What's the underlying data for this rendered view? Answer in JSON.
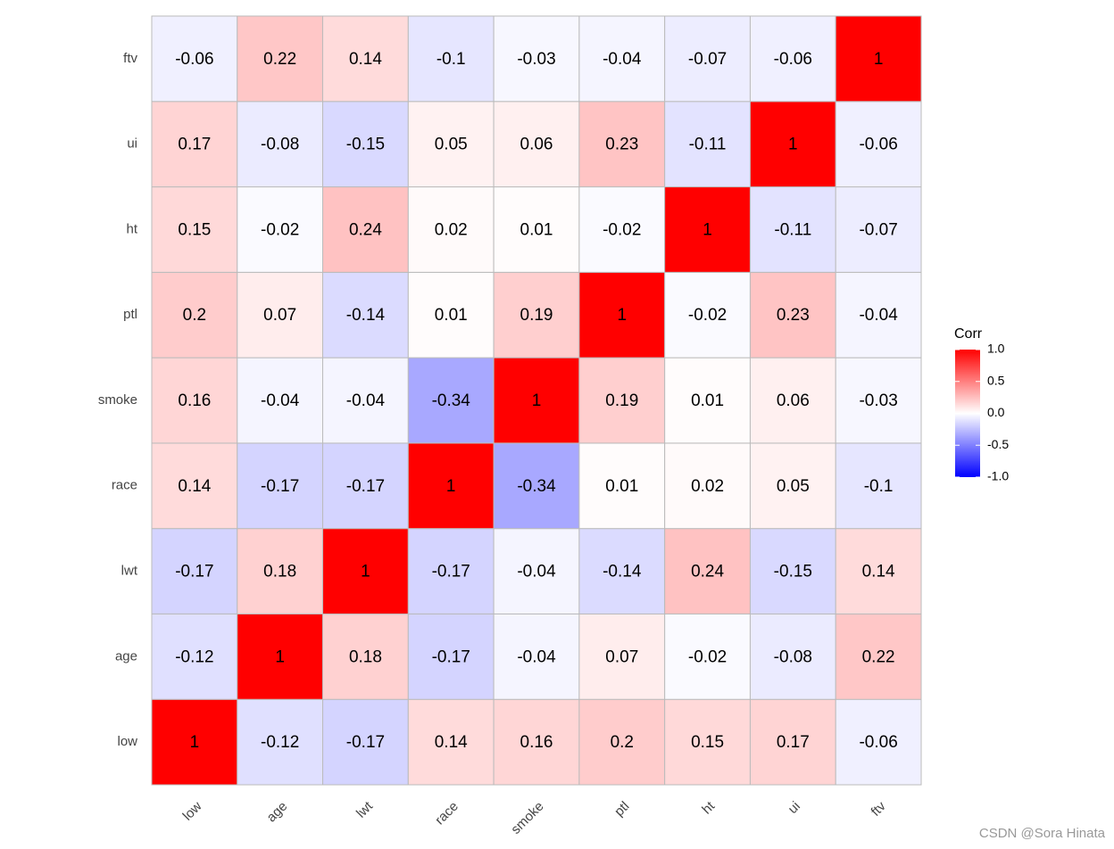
{
  "chart_data": {
    "type": "heatmap",
    "x_categories": [
      "low",
      "age",
      "lwt",
      "race",
      "smoke",
      "ptl",
      "ht",
      "ui",
      "ftv"
    ],
    "y_categories": [
      "low",
      "age",
      "lwt",
      "race",
      "smoke",
      "ptl",
      "ht",
      "ui",
      "ftv"
    ],
    "values": [
      [
        1,
        -0.12,
        -0.17,
        0.14,
        0.16,
        0.2,
        0.15,
        0.17,
        -0.06
      ],
      [
        -0.12,
        1,
        0.18,
        -0.17,
        -0.04,
        0.07,
        -0.02,
        -0.08,
        0.22
      ],
      [
        -0.17,
        0.18,
        1,
        -0.17,
        -0.04,
        -0.14,
        0.24,
        -0.15,
        0.14
      ],
      [
        0.14,
        -0.17,
        -0.17,
        1,
        -0.34,
        0.01,
        0.02,
        0.05,
        -0.1
      ],
      [
        0.16,
        -0.04,
        -0.04,
        -0.34,
        1,
        0.19,
        0.01,
        0.06,
        -0.03
      ],
      [
        0.2,
        0.07,
        -0.14,
        0.01,
        0.19,
        1,
        -0.02,
        0.23,
        -0.04
      ],
      [
        0.15,
        -0.02,
        0.24,
        0.02,
        0.01,
        -0.02,
        1,
        -0.11,
        -0.07
      ],
      [
        0.17,
        -0.08,
        -0.15,
        0.05,
        0.06,
        0.23,
        -0.11,
        1,
        -0.06
      ],
      [
        -0.06,
        0.22,
        0.14,
        -0.1,
        -0.03,
        -0.04,
        -0.07,
        -0.06,
        1
      ]
    ],
    "legend": {
      "title": "Corr",
      "lim": [
        -1,
        1
      ],
      "ticks": [
        {
          "value": 1,
          "label": "1.0"
        },
        {
          "value": 0.5,
          "label": "0.5"
        },
        {
          "value": 0,
          "label": "0.0"
        },
        {
          "value": -0.5,
          "label": "-0.5"
        },
        {
          "value": -1,
          "label": "-1.0"
        }
      ],
      "low_color": "#0000ff",
      "mid_color": "#ffffff",
      "high_color": "#ff0000"
    },
    "cell_border_color": "#bbbbbb",
    "watermark": "CSDN @Sora Hinata"
  }
}
